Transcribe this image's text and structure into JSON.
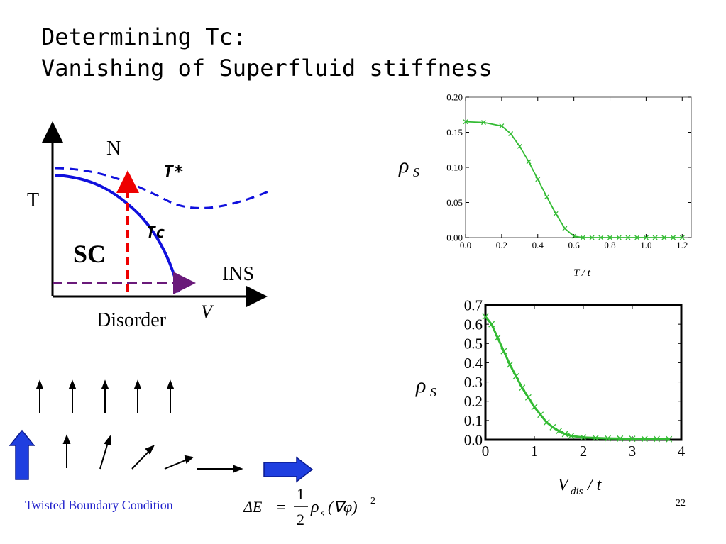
{
  "title": {
    "line1": "Determining Tc:",
    "line2": "Vanishing of Superfluid stiffness"
  },
  "phase_diagram": {
    "n_label": "N",
    "t_label": "T",
    "sc_label": "SC",
    "ins_label": "INS",
    "disorder_label": "Disorder",
    "v_label": "V",
    "tstar_label": "T*",
    "tc_label": "Tc",
    "colors": {
      "tc_line": "#1010dd",
      "tstar_line": "#1010dd",
      "vertical_arrow": "#ee0000",
      "horizontal_arrow": "#6a1a7a"
    }
  },
  "twisted_boundary": {
    "label": "Twisted Boundary Condition",
    "colors": {
      "block_arrow": "#1f3fe0"
    }
  },
  "equation": {
    "lhs": "ΔE",
    "eq": "=",
    "num": "1",
    "den": "2",
    "rho": "ρ",
    "rho_sub": "s",
    "rest": "(∇φ)",
    "exp": "2"
  },
  "page_number": "22",
  "chart_data": [
    {
      "type": "line",
      "ylabel_symbol": "ρ",
      "ylabel_sub": "S",
      "xlabel": "T / t",
      "xlim": [
        0.0,
        1.25
      ],
      "ylim": [
        0.0,
        0.2
      ],
      "xticks": [
        "0.0",
        "0.2",
        "0.4",
        "0.6",
        "0.8",
        "1.0",
        "1.2"
      ],
      "yticks": [
        "0.00",
        "0.05",
        "0.10",
        "0.15",
        "0.20"
      ],
      "color": "#33bb33",
      "marker": "x",
      "x": [
        0.0,
        0.1,
        0.2,
        0.25,
        0.3,
        0.35,
        0.4,
        0.45,
        0.5,
        0.55,
        0.6,
        0.65,
        0.7,
        0.75,
        0.8,
        0.85,
        0.9,
        0.95,
        1.0,
        1.05,
        1.1,
        1.15,
        1.2
      ],
      "y": [
        0.165,
        0.164,
        0.159,
        0.148,
        0.13,
        0.108,
        0.083,
        0.058,
        0.034,
        0.013,
        0.002,
        0.0,
        0.0,
        0.0,
        0.0,
        0.0,
        0.0,
        0.0,
        0.0,
        0.0,
        0.0,
        0.0,
        0.0
      ]
    },
    {
      "type": "line",
      "ylabel_symbol": "ρ",
      "ylabel_sub": "S",
      "xlabel_main": "V",
      "xlabel_sub": "dis",
      "xlabel_tail": "/ t",
      "xlim": [
        0,
        4
      ],
      "ylim": [
        0.0,
        0.7
      ],
      "xticks": [
        "0",
        "1",
        "2",
        "3",
        "4"
      ],
      "yticks": [
        "0.0",
        "0.1",
        "0.2",
        "0.3",
        "0.4",
        "0.5",
        "0.6",
        "0.7"
      ],
      "color": "#33bb33",
      "marker": "x",
      "x": [
        0.0,
        0.125,
        0.25,
        0.375,
        0.5,
        0.625,
        0.75,
        0.875,
        1.0,
        1.125,
        1.25,
        1.375,
        1.5,
        1.625,
        1.75,
        2.0,
        2.25,
        2.5,
        2.75,
        3.0,
        3.25,
        3.5,
        3.75
      ],
      "y": [
        0.64,
        0.6,
        0.53,
        0.46,
        0.39,
        0.33,
        0.27,
        0.22,
        0.17,
        0.13,
        0.09,
        0.065,
        0.045,
        0.03,
        0.02,
        0.012,
        0.009,
        0.007,
        0.006,
        0.005,
        0.004,
        0.004,
        0.003
      ]
    }
  ]
}
